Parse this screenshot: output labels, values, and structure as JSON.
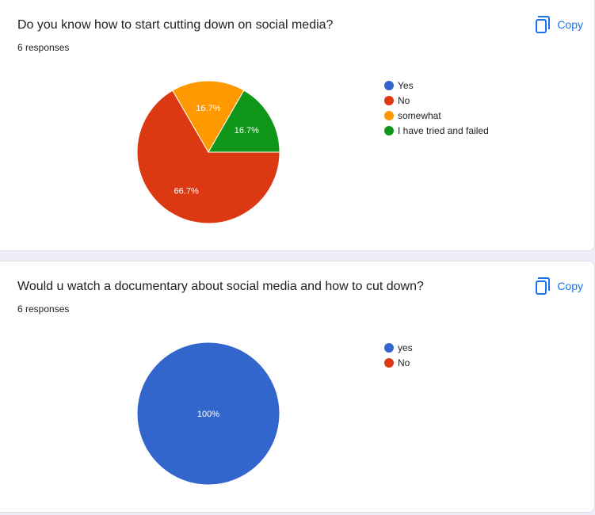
{
  "copy_label": "Copy",
  "questions": [
    {
      "title": "Do you know how to start cutting down on social media?",
      "responses": "6 responses"
    },
    {
      "title": "Would u watch a documentary about social media and how to cut down?",
      "responses": "6 responses"
    }
  ],
  "chart_data": [
    {
      "type": "pie",
      "title": "Do you know how to start cutting down on social media?",
      "categories": [
        "Yes",
        "No",
        "somewhat",
        "I have tried and failed"
      ],
      "values": [
        0,
        66.7,
        16.7,
        16.7
      ],
      "value_labels": [
        "",
        "66.7%",
        "16.7%",
        "16.7%"
      ],
      "colors": [
        "#3366cc",
        "#dc3912",
        "#ff9900",
        "#109618"
      ],
      "legend": "right"
    },
    {
      "type": "pie",
      "title": "Would u watch a documentary about social media and how to cut down?",
      "categories": [
        "yes",
        "No"
      ],
      "values": [
        100,
        0
      ],
      "value_labels": [
        "100%",
        ""
      ],
      "colors": [
        "#3366cc",
        "#dc3912"
      ],
      "legend": "right"
    }
  ]
}
